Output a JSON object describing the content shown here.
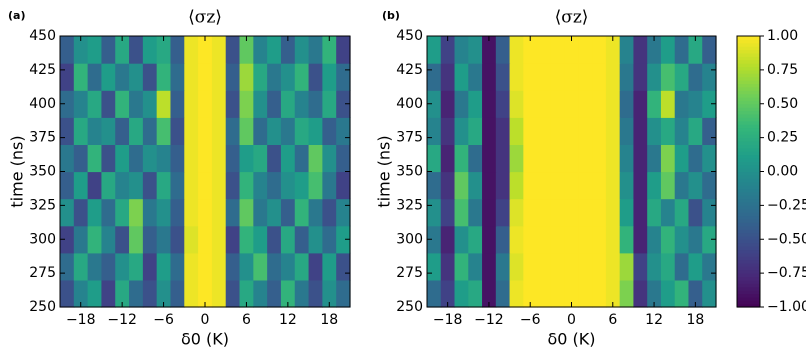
{
  "chart_data": [
    {
      "type": "heatmap",
      "panel_label": "(a)",
      "title": "⟨σz⟩",
      "xlabel": "δ0 (K)",
      "ylabel": "time (ns)",
      "colormap": "viridis",
      "xlim": [
        -21,
        21
      ],
      "ylim": [
        250,
        450
      ],
      "xticks": [
        {
          "value": -18,
          "label": "−18"
        },
        {
          "value": -12,
          "label": "−12"
        },
        {
          "value": -6,
          "label": "−6"
        },
        0,
        6,
        12,
        18
      ],
      "yticks": [
        250,
        275,
        300,
        325,
        350,
        375,
        400,
        425,
        450
      ],
      "x": [
        -20,
        -18,
        -16,
        -14,
        -12,
        -10,
        -8,
        -6,
        -4,
        -2,
        0,
        2,
        4,
        6,
        8,
        10,
        12,
        14,
        16,
        18,
        20
      ],
      "y": [
        260,
        280,
        300,
        320,
        340,
        360,
        380,
        400,
        420,
        440
      ],
      "z": [
        [
          -0.5,
          -0.1,
          0.1,
          -0.6,
          0.2,
          -0.3,
          -0.5,
          0.0,
          -0.4,
          0.95,
          1,
          0.95,
          -0.5,
          0.2,
          -0.1,
          -0.4,
          0.3,
          -0.2,
          -0.5,
          0.0,
          -0.3
        ],
        [
          -0.3,
          0.2,
          -0.2,
          -0.4,
          0.0,
          0.2,
          -0.6,
          0.1,
          -0.3,
          0.95,
          1,
          0.95,
          -0.4,
          0.0,
          0.4,
          -0.3,
          -0.1,
          0.2,
          -0.6,
          0.1,
          -0.5
        ],
        [
          -0.6,
          -0.2,
          0.3,
          -0.1,
          -0.5,
          0.5,
          -0.4,
          -0.2,
          -0.5,
          0.9,
          1,
          0.95,
          -0.6,
          0.3,
          0.1,
          -0.5,
          0.2,
          -0.4,
          0.0,
          -0.3,
          0.1
        ],
        [
          0.0,
          -0.5,
          0.1,
          -0.3,
          0.2,
          0.6,
          -0.2,
          0.0,
          -0.4,
          0.95,
          1,
          0.95,
          -0.3,
          0.5,
          -0.2,
          0.0,
          -0.4,
          0.3,
          -0.2,
          -0.5,
          -0.1
        ],
        [
          -0.4,
          0.1,
          -0.6,
          0.2,
          -0.1,
          0.0,
          -0.5,
          0.2,
          -0.3,
          0.95,
          1,
          0.95,
          -0.5,
          0.3,
          -0.1,
          -0.3,
          0.0,
          0.1,
          0.4,
          -0.2,
          -0.6
        ],
        [
          -0.2,
          -0.4,
          0.3,
          -0.5,
          0.1,
          -0.3,
          0.0,
          -0.1,
          -0.4,
          0.95,
          1,
          0.95,
          -0.4,
          0.1,
          0.2,
          -0.5,
          0.1,
          -0.3,
          0.5,
          0.0,
          -0.4
        ],
        [
          -0.5,
          0.2,
          -0.1,
          0.0,
          -0.4,
          0.2,
          -0.3,
          0.4,
          -0.5,
          0.95,
          1,
          0.95,
          -0.3,
          0.5,
          -0.3,
          0.0,
          -0.2,
          0.2,
          0.1,
          -0.4,
          -0.2
        ],
        [
          -0.3,
          -0.1,
          0.2,
          -0.5,
          0.3,
          -0.2,
          0.0,
          0.8,
          -0.4,
          0.95,
          1,
          0.95,
          -0.5,
          0.6,
          0.0,
          -0.4,
          0.2,
          -0.1,
          -0.3,
          0.2,
          -0.5
        ],
        [
          -0.6,
          0.3,
          -0.3,
          0.1,
          -0.2,
          0.0,
          -0.5,
          0.3,
          -0.3,
          0.95,
          1,
          0.95,
          -0.4,
          0.7,
          0.2,
          -0.2,
          0.0,
          0.3,
          -0.5,
          0.1,
          -0.3
        ],
        [
          -0.4,
          0.0,
          0.1,
          -0.4,
          0.2,
          -0.5,
          0.1,
          0.2,
          -0.4,
          0.95,
          1,
          0.95,
          -0.5,
          0.5,
          -0.1,
          0.1,
          -0.4,
          0.0,
          -0.2,
          0.3,
          -0.6
        ]
      ]
    },
    {
      "type": "heatmap",
      "panel_label": "(b)",
      "title": "⟨σz⟩",
      "xlabel": "δ0 (K)",
      "ylabel": "time (ns)",
      "colormap": "viridis",
      "xlim": [
        -21,
        21
      ],
      "ylim": [
        250,
        450
      ],
      "xticks": [
        {
          "value": -18,
          "label": "−18"
        },
        {
          "value": -12,
          "label": "−12"
        },
        {
          "value": -6,
          "label": "−6"
        },
        0,
        6,
        12,
        18
      ],
      "yticks": [
        250,
        275,
        300,
        325,
        350,
        375,
        400,
        425,
        450
      ],
      "x": [
        -20,
        -18,
        -16,
        -14,
        -12,
        -10,
        -8,
        -6,
        -4,
        -2,
        0,
        2,
        4,
        6,
        8,
        10,
        12,
        14,
        16,
        18,
        20
      ],
      "y": [
        260,
        280,
        300,
        320,
        340,
        360,
        380,
        400,
        420,
        440
      ],
      "z": [
        [
          -0.3,
          -0.6,
          0.1,
          0.2,
          -0.9,
          -0.3,
          0.95,
          1,
          1,
          1,
          1,
          1,
          1,
          0.95,
          0.6,
          -0.7,
          -0.2,
          0.1,
          0.3,
          -0.4,
          0.0
        ],
        [
          0.1,
          -0.7,
          0.3,
          -0.1,
          -0.9,
          -0.2,
          0.9,
          1,
          1,
          1,
          1,
          1,
          1,
          0.95,
          0.7,
          -0.6,
          0.0,
          0.2,
          -0.3,
          0.1,
          -0.2
        ],
        [
          -0.2,
          -0.8,
          0.0,
          0.2,
          -0.9,
          -0.4,
          0.95,
          1,
          1,
          1,
          1,
          1,
          1,
          0.95,
          0.3,
          -0.8,
          -0.1,
          0.3,
          0.0,
          -0.2,
          0.2
        ],
        [
          0.0,
          -0.6,
          0.4,
          -0.2,
          -0.9,
          -0.6,
          0.9,
          1,
          1,
          1,
          1,
          1,
          1,
          0.95,
          0.1,
          -0.8,
          0.2,
          -0.1,
          0.2,
          -0.5,
          -0.1
        ],
        [
          -0.3,
          -0.7,
          0.5,
          0.0,
          -0.9,
          -0.7,
          0.8,
          1,
          1,
          1,
          1,
          1,
          1,
          0.95,
          0.0,
          -0.8,
          0.1,
          0.5,
          -0.2,
          0.0,
          -0.3
        ],
        [
          0.2,
          -0.8,
          0.3,
          -0.3,
          -0.9,
          -0.7,
          0.7,
          1,
          1,
          1,
          1,
          1,
          1,
          0.95,
          -0.1,
          -0.8,
          -0.2,
          0.6,
          0.1,
          -0.3,
          0.0
        ],
        [
          -0.1,
          -0.7,
          0.0,
          0.2,
          -0.9,
          -0.7,
          0.8,
          1,
          1,
          1,
          1,
          1,
          1,
          0.95,
          -0.2,
          -0.8,
          0.0,
          0.2,
          -0.1,
          0.2,
          -0.4
        ],
        [
          0.0,
          -0.8,
          -0.2,
          0.1,
          -0.9,
          -0.6,
          0.9,
          1,
          1,
          1,
          1,
          1,
          1,
          0.95,
          -0.3,
          -0.8,
          0.3,
          0.8,
          -0.2,
          -0.1,
          0.1
        ],
        [
          -0.3,
          -0.7,
          0.1,
          -0.2,
          -0.9,
          -0.5,
          0.95,
          1,
          1,
          1,
          1,
          1,
          1,
          0.95,
          -0.2,
          -0.7,
          0.0,
          0.4,
          0.2,
          -0.3,
          -0.1
        ],
        [
          0.1,
          -0.6,
          -0.1,
          0.0,
          -0.9,
          -0.4,
          0.95,
          1,
          1,
          1,
          1,
          1,
          1,
          0.95,
          -0.1,
          -0.7,
          -0.2,
          0.1,
          -0.3,
          0.2,
          -0.4
        ]
      ],
      "colorbar": {
        "lim": [
          -1,
          1
        ],
        "ticks": [
          {
            "value": 1,
            "label": "1.00"
          },
          {
            "value": 0.75,
            "label": "0.75"
          },
          {
            "value": 0.5,
            "label": "0.50"
          },
          {
            "value": 0.25,
            "label": "0.25"
          },
          {
            "value": 0,
            "label": "0.00"
          },
          {
            "value": -0.25,
            "label": "−0.25"
          },
          {
            "value": -0.5,
            "label": "−0.50"
          },
          {
            "value": -0.75,
            "label": "−0.75"
          },
          {
            "value": -1,
            "label": "−1.00"
          }
        ]
      }
    }
  ]
}
